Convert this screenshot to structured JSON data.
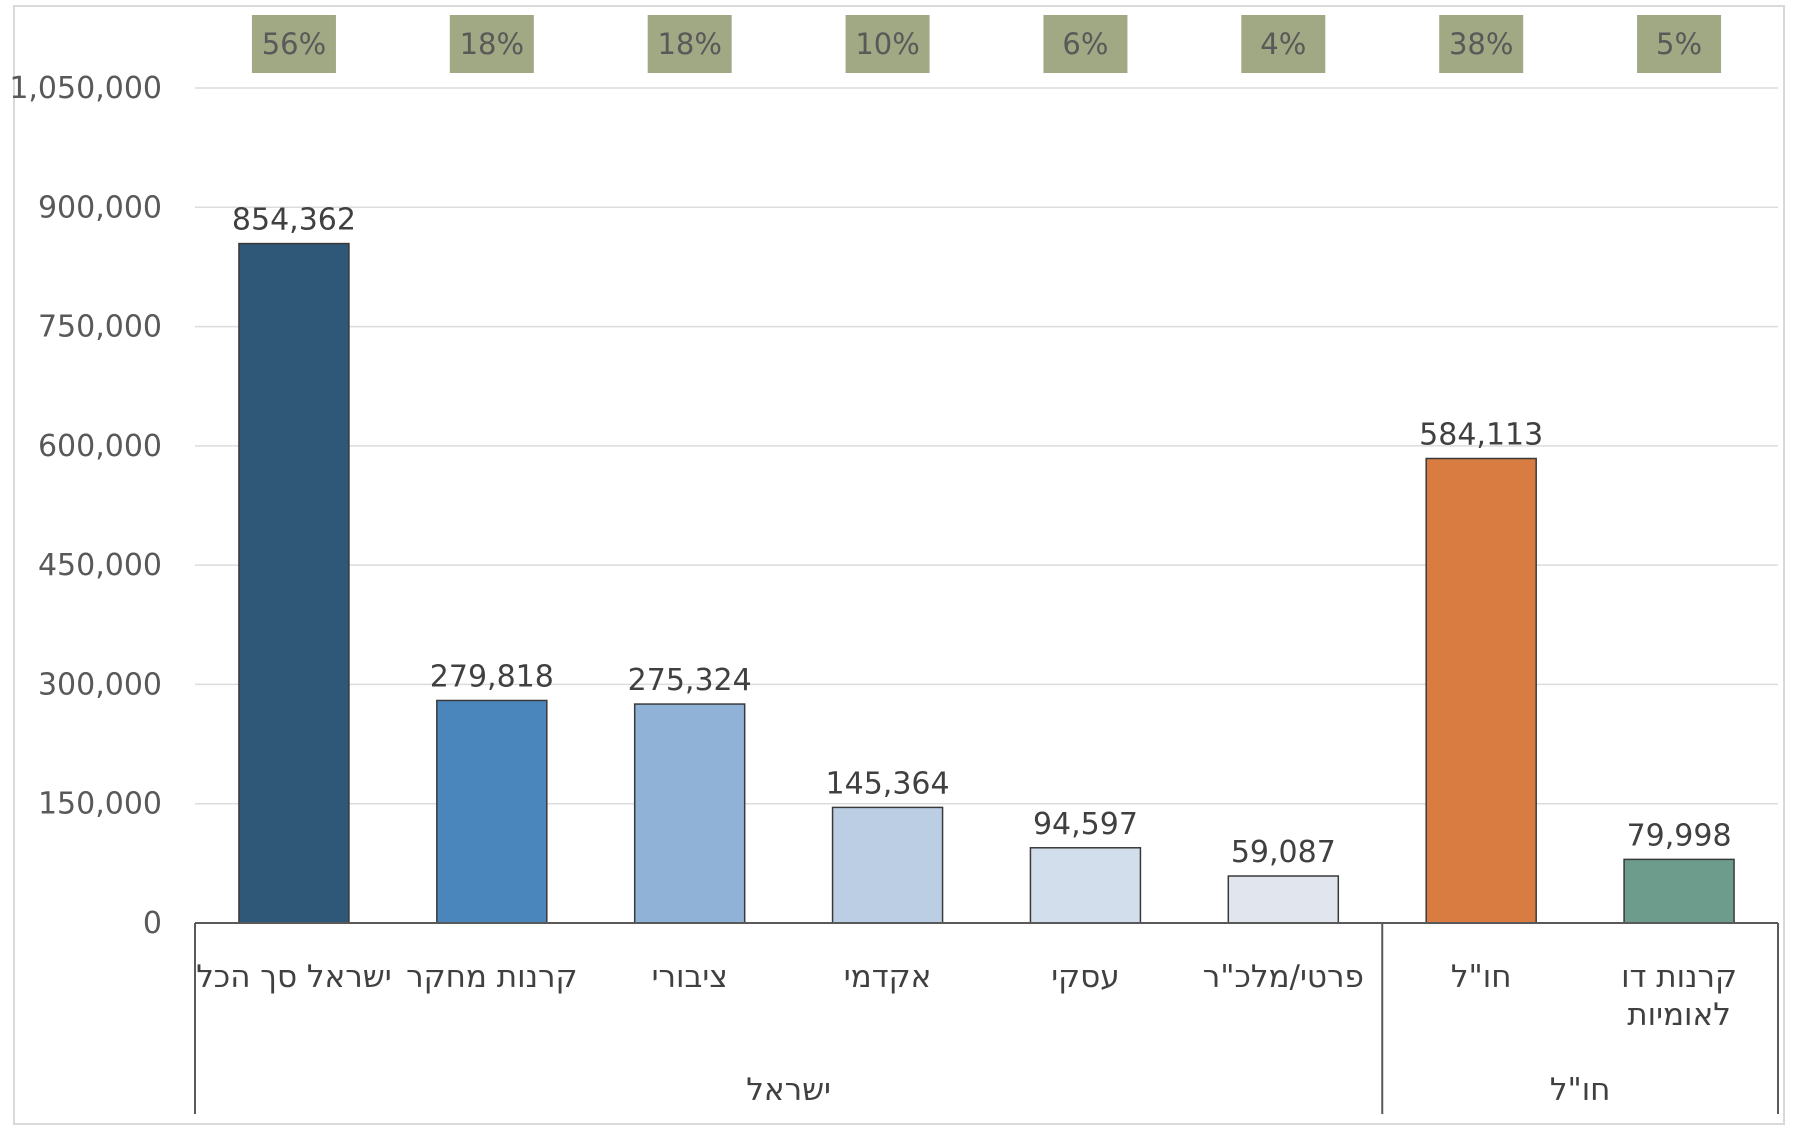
{
  "chart_data": {
    "type": "bar",
    "categories": [
      "ישראל סך הכל",
      "קרנות מחקר",
      "ציבורי",
      "אקדמי",
      "עסקי",
      "פרטי/מלכ\"ר",
      "חו\"ל",
      "קרנות דו לאומיות"
    ],
    "category_lines": [
      [
        "ישראל סך הכל"
      ],
      [
        "קרנות מחקר"
      ],
      [
        "ציבורי"
      ],
      [
        "אקדמי"
      ],
      [
        "עסקי"
      ],
      [
        "פרטי/מלכ\"ר"
      ],
      [
        "חו\"ל"
      ],
      [
        "קרנות דו",
        "לאומיות"
      ]
    ],
    "values": [
      854362,
      279818,
      275324,
      145364,
      94597,
      59087,
      584113,
      79998
    ],
    "value_labels": [
      "854,362",
      "279,818",
      "275,324",
      "145,364",
      "94,597",
      "59,087",
      "584,113",
      "79,998"
    ],
    "percentages": [
      "56%",
      "18%",
      "18%",
      "10%",
      "6%",
      "4%",
      "38%",
      "5%"
    ],
    "groups": [
      {
        "label": "ישראל",
        "start": 0,
        "end": 5
      },
      {
        "label": "חו\"ל",
        "start": 6,
        "end": 7
      }
    ],
    "colors": [
      "#2f5878",
      "#4a86bc",
      "#8fb2d6",
      "#bccee3",
      "#d2deec",
      "#e1e6ee",
      "#d97c42",
      "#6e9c8c"
    ],
    "percent_box_color": "#a1a884",
    "ylim": [
      0,
      1050000
    ],
    "yticks": [
      0,
      150000,
      300000,
      450000,
      600000,
      750000,
      900000,
      1050000
    ],
    "ytick_labels": [
      "0",
      "150,000",
      "300,000",
      "450,000",
      "600,000",
      "750,000",
      "900,000",
      "1,050,000"
    ],
    "grid": true,
    "title": "",
    "xlabel": "",
    "ylabel": ""
  }
}
